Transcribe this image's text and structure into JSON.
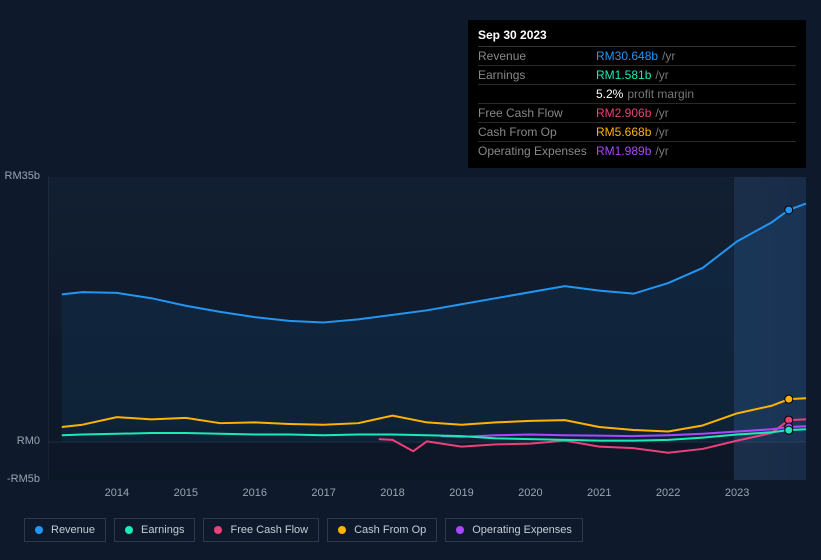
{
  "tooltip": {
    "title": "Sep 30 2023",
    "rows": [
      {
        "label": "Revenue",
        "value": "RM30.648b",
        "suffix": "/yr",
        "color": "#2196f3"
      },
      {
        "label": "Earnings",
        "value": "RM1.581b",
        "suffix": "/yr",
        "color": "#1de9b6",
        "sub": {
          "pct": "5.2%",
          "desc": "profit margin"
        }
      },
      {
        "label": "Free Cash Flow",
        "value": "RM2.906b",
        "suffix": "/yr",
        "color": "#ec407a"
      },
      {
        "label": "Cash From Op",
        "value": "RM5.668b",
        "suffix": "/yr",
        "color": "#ffb300"
      },
      {
        "label": "Operating Expenses",
        "value": "RM1.989b",
        "suffix": "/yr",
        "color": "#ab47ff"
      }
    ]
  },
  "chart": {
    "type": "line",
    "background_color": "#0e1a2b",
    "grid_color": "rgba(255,255,255,0.05)",
    "label_color": "#9aa4b1",
    "label_fontsize": 11,
    "x": {
      "min": 2013.0,
      "max": 2024.0,
      "ticks": [
        2014,
        2015,
        2016,
        2017,
        2018,
        2019,
        2020,
        2021,
        2022,
        2023
      ]
    },
    "y": {
      "min": -5,
      "max": 35,
      "ticks": [
        {
          "v": 35,
          "label": "RM35b"
        },
        {
          "v": 0,
          "label": "RM0"
        },
        {
          "v": -5,
          "label": "-RM5b"
        }
      ]
    },
    "highlight_x": 2023.75,
    "series": [
      {
        "name": "Revenue",
        "color": "#2196f3",
        "width": 2,
        "fill": "rgba(33,150,243,0.08)",
        "x": [
          2013.2,
          2013.5,
          2014.0,
          2014.5,
          2015.0,
          2015.5,
          2016.0,
          2016.5,
          2017.0,
          2017.5,
          2018.0,
          2018.5,
          2019.0,
          2019.5,
          2020.0,
          2020.5,
          2021.0,
          2021.5,
          2022.0,
          2022.5,
          2023.0,
          2023.5,
          2023.75,
          2024.0
        ],
        "y": [
          19.5,
          19.8,
          19.7,
          19.0,
          18.0,
          17.2,
          16.5,
          16.0,
          15.8,
          16.2,
          16.8,
          17.4,
          18.2,
          19.0,
          19.8,
          20.6,
          20.0,
          19.6,
          21.0,
          23.0,
          26.5,
          29.0,
          30.65,
          31.5
        ]
      },
      {
        "name": "Cash From Op",
        "color": "#ffb300",
        "width": 2,
        "x": [
          2013.2,
          2013.5,
          2014.0,
          2014.5,
          2015.0,
          2015.5,
          2016.0,
          2016.5,
          2017.0,
          2017.5,
          2018.0,
          2018.5,
          2019.0,
          2019.5,
          2020.0,
          2020.5,
          2021.0,
          2021.5,
          2022.0,
          2022.5,
          2023.0,
          2023.5,
          2023.75,
          2024.0
        ],
        "y": [
          2.0,
          2.3,
          3.3,
          3.0,
          3.2,
          2.5,
          2.6,
          2.4,
          2.3,
          2.5,
          3.5,
          2.6,
          2.3,
          2.6,
          2.8,
          2.9,
          2.0,
          1.6,
          1.4,
          2.2,
          3.8,
          4.8,
          5.67,
          5.8
        ]
      },
      {
        "name": "Free Cash Flow",
        "color": "#ec407a",
        "width": 2,
        "x": [
          2017.8,
          2018.0,
          2018.3,
          2018.5,
          2019.0,
          2019.5,
          2020.0,
          2020.5,
          2021.0,
          2021.5,
          2022.0,
          2022.5,
          2023.0,
          2023.5,
          2023.75,
          2024.0
        ],
        "y": [
          0.4,
          0.3,
          -1.2,
          0.1,
          -0.6,
          -0.3,
          -0.2,
          0.2,
          -0.6,
          -0.8,
          -1.4,
          -0.9,
          0.2,
          1.2,
          2.91,
          3.0
        ]
      },
      {
        "name": "Operating Expenses",
        "color": "#ab47ff",
        "width": 2,
        "x": [
          2018.7,
          2019.0,
          2019.5,
          2020.0,
          2020.5,
          2021.0,
          2021.5,
          2022.0,
          2022.5,
          2023.0,
          2023.5,
          2023.75,
          2024.0
        ],
        "y": [
          0.8,
          0.7,
          0.9,
          1.0,
          0.9,
          0.85,
          0.8,
          0.9,
          1.1,
          1.4,
          1.7,
          1.99,
          2.1
        ]
      },
      {
        "name": "Earnings",
        "color": "#1de9b6",
        "width": 2,
        "x": [
          2013.2,
          2013.5,
          2014.0,
          2014.5,
          2015.0,
          2015.5,
          2016.0,
          2016.5,
          2017.0,
          2017.5,
          2018.0,
          2018.5,
          2019.0,
          2019.5,
          2020.0,
          2020.5,
          2021.0,
          2021.5,
          2022.0,
          2022.5,
          2023.0,
          2023.5,
          2023.75,
          2024.0
        ],
        "y": [
          0.9,
          1.0,
          1.1,
          1.2,
          1.2,
          1.1,
          1.0,
          1.0,
          0.9,
          1.0,
          1.0,
          0.9,
          0.8,
          0.5,
          0.4,
          0.3,
          0.2,
          0.2,
          0.3,
          0.6,
          1.0,
          1.3,
          1.58,
          1.7
        ]
      }
    ]
  },
  "legend": [
    {
      "name": "Revenue",
      "color": "#2196f3"
    },
    {
      "name": "Earnings",
      "color": "#1de9b6"
    },
    {
      "name": "Free Cash Flow",
      "color": "#ec407a"
    },
    {
      "name": "Cash From Op",
      "color": "#ffb300"
    },
    {
      "name": "Operating Expenses",
      "color": "#ab47ff"
    }
  ]
}
